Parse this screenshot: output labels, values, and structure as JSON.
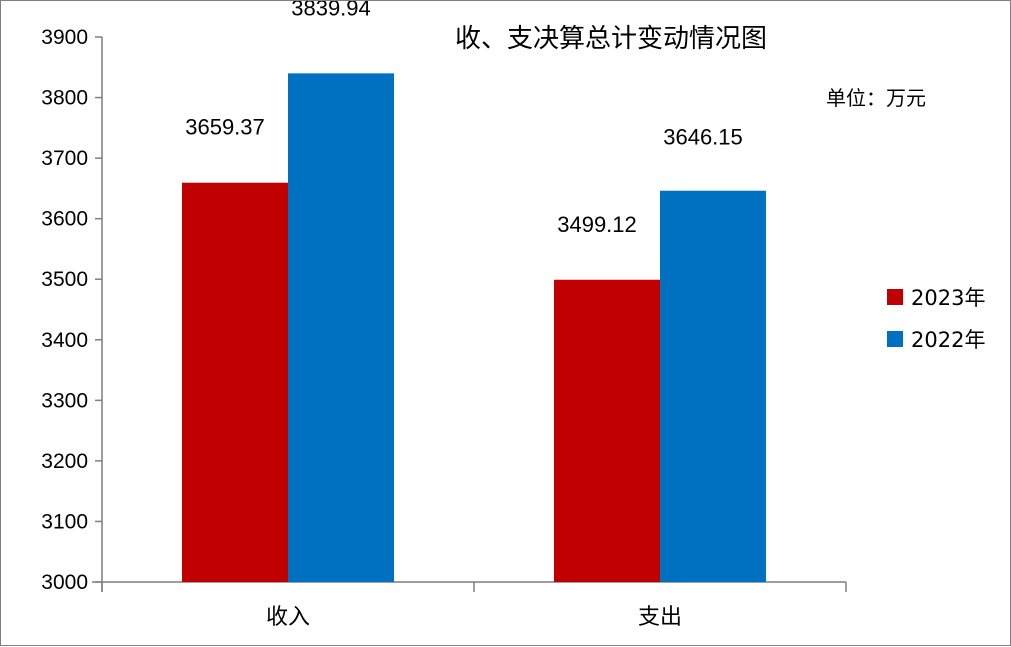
{
  "chart_data": {
    "type": "bar",
    "title": "收、支决算总计变动情况图",
    "unit": "单位：万元",
    "categories": [
      "收入",
      "支出"
    ],
    "series": [
      {
        "name": "2023年",
        "color": "#c00000",
        "values": [
          3659.37,
          3499.12
        ],
        "labels": [
          "3659.37",
          "3499.12"
        ]
      },
      {
        "name": "2022年",
        "color": "#0070c0",
        "values": [
          3839.94,
          3646.15
        ],
        "labels": [
          "3839.94",
          "3646.15"
        ]
      }
    ],
    "ylim": [
      3000,
      3900
    ],
    "yticks": [
      3000,
      3100,
      3200,
      3300,
      3400,
      3500,
      3600,
      3700,
      3800,
      3900
    ],
    "grid": false,
    "legend_position": "right"
  }
}
